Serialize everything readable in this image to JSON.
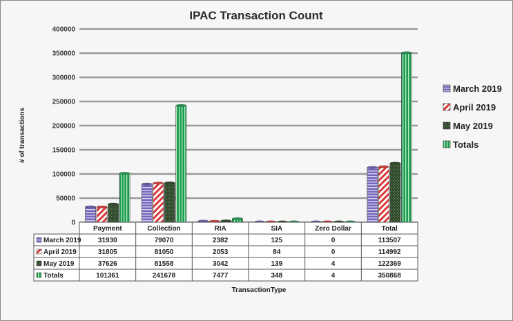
{
  "chart_data": {
    "type": "bar",
    "title": "IPAC Transaction  Count",
    "xlabel": "TransactionType",
    "ylabel": "# of transactions",
    "ylim": [
      0,
      400000
    ],
    "yticks": [
      "0",
      "50000",
      "100000",
      "150000",
      "200000",
      "250000",
      "300000",
      "350000",
      "400000"
    ],
    "grid": true,
    "legend_position": "right",
    "categories": [
      "Payment",
      "Collection",
      "RIA",
      "SIA",
      "Zero Dollar",
      "Total"
    ],
    "series": [
      {
        "name": "March 2019",
        "color": "#6f5fb0",
        "values": [
          31930,
          79070,
          2382,
          125,
          0,
          113507
        ],
        "labels": [
          "31930",
          "79070",
          "2382",
          "125",
          "0",
          "113507"
        ]
      },
      {
        "name": "April 2019",
        "color": "#d93a3a",
        "values": [
          31805,
          81050,
          2053,
          84,
          0,
          114992
        ],
        "labels": [
          "31805",
          "81050",
          "2053",
          "84",
          "0",
          "114992"
        ]
      },
      {
        "name": "May 2019",
        "color": "#2f4a2a",
        "values": [
          37626,
          81558,
          3042,
          139,
          4,
          122369
        ],
        "labels": [
          "37626",
          "81558",
          "3042",
          "139",
          "4",
          "122369"
        ]
      },
      {
        "name": "Totals",
        "color": "#1f9a52",
        "values": [
          101361,
          241678,
          7477,
          348,
          4,
          350868
        ],
        "labels": [
          "101361",
          "241678",
          "7477",
          "348",
          "4",
          "350868"
        ]
      }
    ]
  }
}
